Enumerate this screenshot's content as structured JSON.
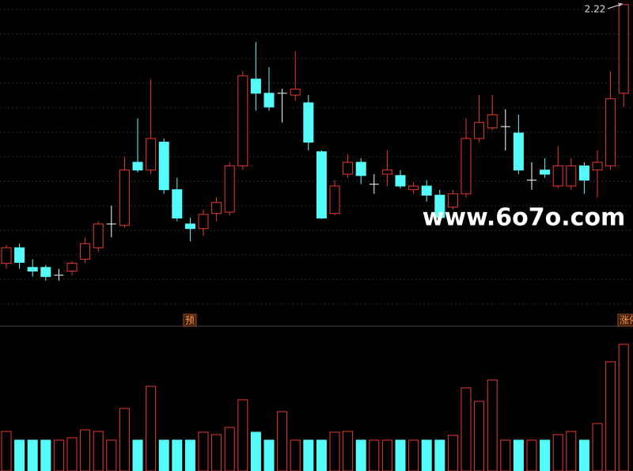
{
  "chart_data": {
    "type": "candlestick",
    "open": [
      1.654,
      1.688,
      1.645,
      1.645,
      1.628,
      1.637,
      1.663,
      1.688,
      1.74,
      1.737,
      1.875,
      1.858,
      1.919,
      1.815,
      1.74,
      1.73,
      1.763,
      1.766,
      1.867,
      2.057,
      2.026,
      2.026,
      2.022,
      2.005,
      1.898,
      1.763,
      1.849,
      1.875,
      1.827,
      1.849,
      1.846,
      1.815,
      1.823,
      1.803,
      1.777,
      1.806,
      1.927,
      1.95,
      1.953,
      1.939,
      1.836,
      1.858,
      1.823,
      1.823,
      1.867,
      1.858,
      1.867,
      2.026
    ],
    "high": [
      1.694,
      1.697,
      1.663,
      1.65,
      1.642,
      1.659,
      1.711,
      1.746,
      1.78,
      1.887,
      1.971,
      2.057,
      1.927,
      1.841,
      1.754,
      1.772,
      1.798,
      1.875,
      2.074,
      2.138,
      2.083,
      2.036,
      2.118,
      2.022,
      1.901,
      1.836,
      1.893,
      1.884,
      1.849,
      1.901,
      1.858,
      1.832,
      1.836,
      1.815,
      1.815,
      1.971,
      2.022,
      2.022,
      1.991,
      1.979,
      1.875,
      1.884,
      1.91,
      1.884,
      1.875,
      1.901,
      2.074,
      2.22
    ],
    "low": [
      1.642,
      1.642,
      1.625,
      1.616,
      1.616,
      1.628,
      1.654,
      1.68,
      1.711,
      1.732,
      1.853,
      1.849,
      1.806,
      1.746,
      1.702,
      1.714,
      1.746,
      1.759,
      1.858,
      1.988,
      1.988,
      1.962,
      2.009,
      1.901,
      1.751,
      1.759,
      1.841,
      1.827,
      1.806,
      1.823,
      1.818,
      1.806,
      1.789,
      1.742,
      1.772,
      1.798,
      1.919,
      1.945,
      1.901,
      1.849,
      1.815,
      1.841,
      1.818,
      1.815,
      1.806,
      1.798,
      1.858,
      1.996
    ],
    "close": [
      1.688,
      1.656,
      1.637,
      1.625,
      1.628,
      1.654,
      1.697,
      1.74,
      1.74,
      1.858,
      1.858,
      1.927,
      1.815,
      1.753,
      1.73,
      1.761,
      1.787,
      1.867,
      2.064,
      2.026,
      1.996,
      2.026,
      2.035,
      1.919,
      1.753,
      1.823,
      1.875,
      1.846,
      1.827,
      1.858,
      1.823,
      1.823,
      1.803,
      1.754,
      1.806,
      1.927,
      1.962,
      1.979,
      1.953,
      1.858,
      1.836,
      1.849,
      1.867,
      1.867,
      1.836,
      1.875,
      2.014,
      2.22
    ],
    "volume": [
      50,
      39,
      39,
      39,
      39,
      42,
      52,
      50,
      39,
      79,
      39,
      107,
      39,
      39,
      39,
      49,
      46,
      55,
      90,
      49,
      39,
      75,
      39,
      39,
      39,
      49,
      50,
      39,
      39,
      39,
      39,
      39,
      39,
      39,
      45,
      105,
      88,
      115,
      39,
      39,
      39,
      39,
      46,
      50,
      39,
      60,
      138,
      160
    ],
    "ylim": [
      1.52,
      2.23
    ],
    "volume_ylim": [
      0,
      180
    ],
    "up_color": "#e8392f",
    "down_color": "#54fcfc",
    "flat_color": "#ffffff",
    "annotation": "2.22",
    "markers": [
      "预",
      "涨停"
    ],
    "watermark": "www.6o7o.com"
  }
}
